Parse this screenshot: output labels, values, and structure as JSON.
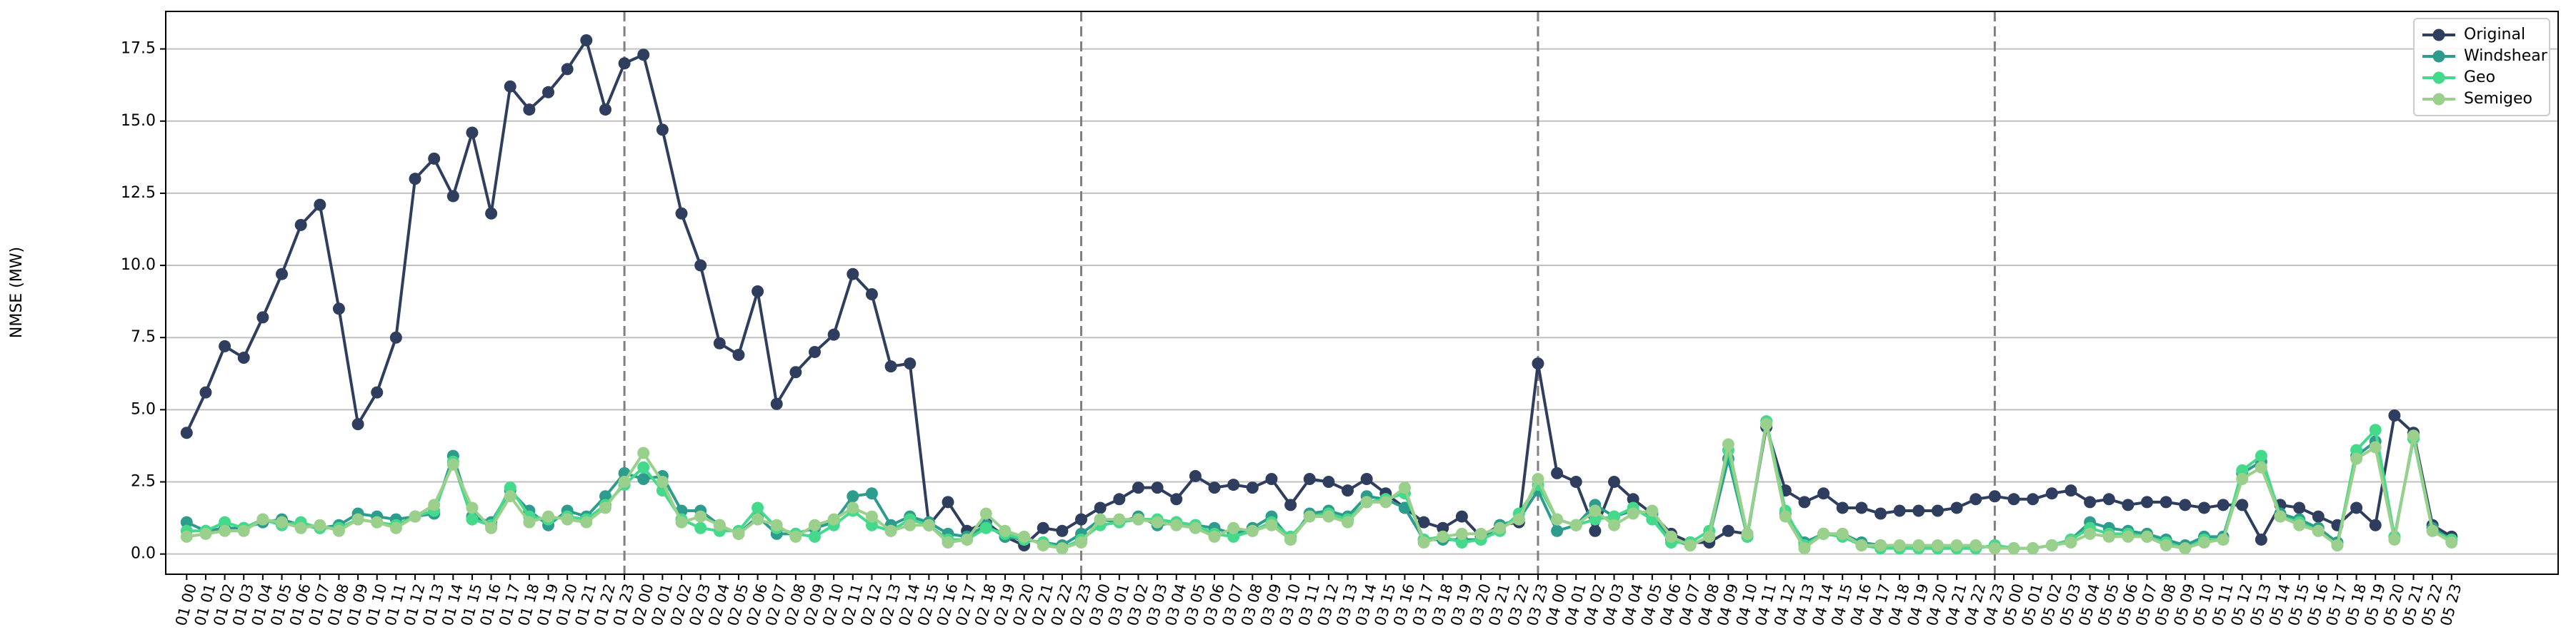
{
  "chart_data": {
    "type": "line",
    "ylabel": "NMSE (MW)",
    "categories": [
      "01 00",
      "01 01",
      "01 02",
      "01 03",
      "01 04",
      "01 05",
      "01 06",
      "01 07",
      "01 08",
      "01 09",
      "01 10",
      "01 11",
      "01 12",
      "01 13",
      "01 14",
      "01 15",
      "01 16",
      "01 17",
      "01 18",
      "01 19",
      "01 20",
      "01 21",
      "01 22",
      "01 23",
      "02 00",
      "02 01",
      "02 02",
      "02 03",
      "02 04",
      "02 05",
      "02 06",
      "02 07",
      "02 08",
      "02 09",
      "02 10",
      "02 11",
      "02 12",
      "02 13",
      "02 14",
      "02 15",
      "02 16",
      "02 17",
      "02 18",
      "02 19",
      "02 20",
      "02 21",
      "02 22",
      "02 23",
      "03 00",
      "03 01",
      "03 02",
      "03 03",
      "03 04",
      "03 05",
      "03 06",
      "03 07",
      "03 08",
      "03 09",
      "03 10",
      "03 11",
      "03 12",
      "03 13",
      "03 14",
      "03 15",
      "03 16",
      "03 17",
      "03 18",
      "03 19",
      "03 20",
      "03 21",
      "03 22",
      "03 23",
      "04 00",
      "04 01",
      "04 02",
      "04 03",
      "04 04",
      "04 05",
      "04 06",
      "04 07",
      "04 08",
      "04 09",
      "04 10",
      "04 11",
      "04 12",
      "04 13",
      "04 14",
      "04 15",
      "04 16",
      "04 17",
      "04 18",
      "04 19",
      "04 20",
      "04 21",
      "04 22",
      "04 23",
      "05 00",
      "05 01",
      "05 02",
      "05 03",
      "05 04",
      "05 05",
      "05 06",
      "05 07",
      "05 08",
      "05 09",
      "05 10",
      "05 11",
      "05 12",
      "05 13",
      "05 14",
      "05 15",
      "05 16",
      "05 17",
      "05 18",
      "05 19",
      "05 20",
      "05 21",
      "05 22",
      "05 23"
    ],
    "series": [
      {
        "name": "Original",
        "color": "#2f3e5e",
        "values": [
          4.2,
          5.6,
          7.2,
          6.8,
          8.2,
          9.7,
          11.4,
          12.1,
          8.5,
          4.5,
          5.6,
          7.5,
          13.0,
          13.7,
          12.4,
          14.6,
          11.8,
          16.2,
          15.4,
          16.0,
          16.8,
          17.8,
          15.4,
          17.0,
          17.3,
          14.7,
          11.8,
          10.0,
          7.3,
          6.9,
          9.1,
          5.2,
          6.3,
          7.0,
          7.6,
          9.7,
          9.0,
          6.5,
          6.6,
          1.0,
          1.8,
          0.8,
          1.1,
          0.6,
          0.3,
          0.9,
          0.8,
          1.2,
          1.6,
          1.9,
          2.3,
          2.3,
          1.9,
          2.7,
          2.3,
          2.4,
          2.3,
          2.6,
          1.7,
          2.6,
          2.5,
          2.2,
          2.6,
          2.1,
          1.6,
          1.1,
          0.9,
          1.3,
          0.6,
          1.0,
          1.1,
          6.6,
          2.8,
          2.5,
          0.8,
          2.5,
          1.9,
          1.4,
          0.7,
          0.4,
          0.4,
          0.8,
          0.7,
          4.4,
          2.2,
          1.8,
          2.1,
          1.6,
          1.6,
          1.4,
          1.5,
          1.5,
          1.5,
          1.6,
          1.9,
          2.0,
          1.9,
          1.9,
          2.1,
          2.2,
          1.8,
          1.9,
          1.7,
          1.8,
          1.8,
          1.7,
          1.6,
          1.7,
          1.7,
          0.5,
          1.7,
          1.6,
          1.3,
          1.0,
          1.6,
          1.0,
          4.8,
          4.2,
          1.0,
          0.6
        ]
      },
      {
        "name": "Windshear",
        "color": "#2e9c8c",
        "values": [
          1.1,
          0.8,
          0.9,
          0.9,
          1.1,
          1.2,
          1.0,
          0.9,
          1.0,
          1.4,
          1.3,
          1.2,
          1.3,
          1.4,
          3.4,
          1.3,
          1.1,
          2.2,
          1.5,
          1.0,
          1.5,
          1.3,
          2.0,
          2.8,
          2.6,
          2.7,
          1.5,
          1.5,
          1.0,
          0.7,
          1.3,
          0.7,
          0.7,
          0.9,
          1.1,
          2.0,
          2.1,
          1.0,
          1.3,
          1.1,
          0.7,
          0.6,
          1.0,
          0.6,
          0.5,
          0.4,
          0.3,
          0.7,
          1.2,
          1.1,
          1.3,
          1.0,
          1.1,
          1.0,
          0.9,
          0.7,
          0.9,
          1.3,
          0.5,
          1.4,
          1.5,
          1.3,
          2.0,
          1.9,
          1.6,
          0.5,
          0.5,
          0.5,
          0.5,
          1.0,
          1.2,
          2.2,
          0.8,
          1.0,
          1.7,
          1.3,
          1.5,
          1.4,
          0.5,
          0.3,
          0.6,
          3.3,
          0.6,
          4.5,
          1.4,
          0.4,
          0.7,
          0.7,
          0.4,
          0.3,
          0.2,
          0.2,
          0.2,
          0.2,
          0.2,
          0.3,
          0.2,
          0.2,
          0.3,
          0.5,
          1.1,
          0.9,
          0.8,
          0.7,
          0.5,
          0.3,
          0.6,
          0.6,
          2.8,
          3.2,
          1.4,
          1.2,
          0.9,
          0.4,
          3.4,
          3.9,
          0.6,
          4.0,
          0.9,
          0.5
        ]
      },
      {
        "name": "Geo",
        "color": "#45d98c",
        "values": [
          0.8,
          0.8,
          1.1,
          0.9,
          1.2,
          1.0,
          1.1,
          0.9,
          0.9,
          1.2,
          1.1,
          1.0,
          1.3,
          1.5,
          3.2,
          1.2,
          1.0,
          2.3,
          1.3,
          1.2,
          1.3,
          1.2,
          1.7,
          2.4,
          3.0,
          2.2,
          1.2,
          0.9,
          0.8,
          0.8,
          1.6,
          0.9,
          0.7,
          0.6,
          1.0,
          1.5,
          1.0,
          0.8,
          1.2,
          1.0,
          0.5,
          0.5,
          0.9,
          0.7,
          0.5,
          0.4,
          0.2,
          0.5,
          1.0,
          1.1,
          1.2,
          1.2,
          1.1,
          1.0,
          0.7,
          0.6,
          0.8,
          1.1,
          0.6,
          1.3,
          1.4,
          1.2,
          1.8,
          1.9,
          2.1,
          0.5,
          0.6,
          0.4,
          0.5,
          0.8,
          1.4,
          2.4,
          1.2,
          1.0,
          1.2,
          1.3,
          1.6,
          1.2,
          0.4,
          0.4,
          0.8,
          3.6,
          0.6,
          4.6,
          1.5,
          0.3,
          0.7,
          0.6,
          0.3,
          0.2,
          0.2,
          0.2,
          0.2,
          0.2,
          0.2,
          0.3,
          0.2,
          0.2,
          0.3,
          0.5,
          0.9,
          0.7,
          0.7,
          0.6,
          0.4,
          0.2,
          0.5,
          0.5,
          2.9,
          3.4,
          1.3,
          1.1,
          0.8,
          0.3,
          3.6,
          4.3,
          0.6,
          4.0,
          0.8,
          0.5
        ]
      },
      {
        "name": "Semigeo",
        "color": "#9bd08c",
        "values": [
          0.6,
          0.7,
          0.8,
          0.8,
          1.2,
          1.1,
          0.9,
          1.0,
          0.8,
          1.2,
          1.1,
          0.9,
          1.3,
          1.7,
          3.1,
          1.6,
          0.9,
          2.0,
          1.1,
          1.3,
          1.2,
          1.1,
          1.6,
          2.5,
          3.5,
          2.5,
          1.1,
          1.3,
          1.0,
          0.7,
          1.2,
          1.0,
          0.6,
          1.0,
          1.2,
          1.6,
          1.3,
          0.8,
          1.0,
          1.0,
          0.4,
          0.5,
          1.4,
          0.8,
          0.6,
          0.3,
          0.2,
          0.4,
          1.2,
          1.2,
          1.2,
          1.1,
          1.0,
          0.9,
          0.6,
          0.9,
          0.8,
          1.0,
          0.5,
          1.3,
          1.3,
          1.1,
          1.8,
          1.8,
          2.3,
          0.4,
          0.6,
          0.7,
          0.7,
          0.9,
          1.2,
          2.6,
          1.2,
          1.0,
          1.5,
          1.0,
          1.4,
          1.5,
          0.6,
          0.3,
          0.6,
          3.8,
          0.7,
          4.5,
          1.3,
          0.2,
          0.7,
          0.7,
          0.3,
          0.3,
          0.3,
          0.3,
          0.3,
          0.3,
          0.3,
          0.2,
          0.2,
          0.2,
          0.3,
          0.4,
          0.7,
          0.6,
          0.6,
          0.6,
          0.3,
          0.2,
          0.4,
          0.5,
          2.6,
          3.0,
          1.3,
          1.0,
          0.8,
          0.3,
          3.3,
          3.7,
          0.5,
          4.1,
          0.8,
          0.4
        ]
      }
    ],
    "ylim": [
      -0.7,
      18.8
    ],
    "yticks": [
      {
        "value": 0,
        "label": "0.0"
      },
      {
        "value": 2.5,
        "label": "2.5"
      },
      {
        "value": 5,
        "label": "5.0"
      },
      {
        "value": 7.5,
        "label": "7.5"
      },
      {
        "value": 10,
        "label": "10.0"
      },
      {
        "value": 12.5,
        "label": "12.5"
      },
      {
        "value": 15,
        "label": "15.0"
      },
      {
        "value": 17.5,
        "label": "17.5"
      }
    ],
    "grid": true,
    "vlines": [
      "01 23",
      "02 23",
      "03 23",
      "04 23"
    ],
    "legend": "upper right"
  }
}
